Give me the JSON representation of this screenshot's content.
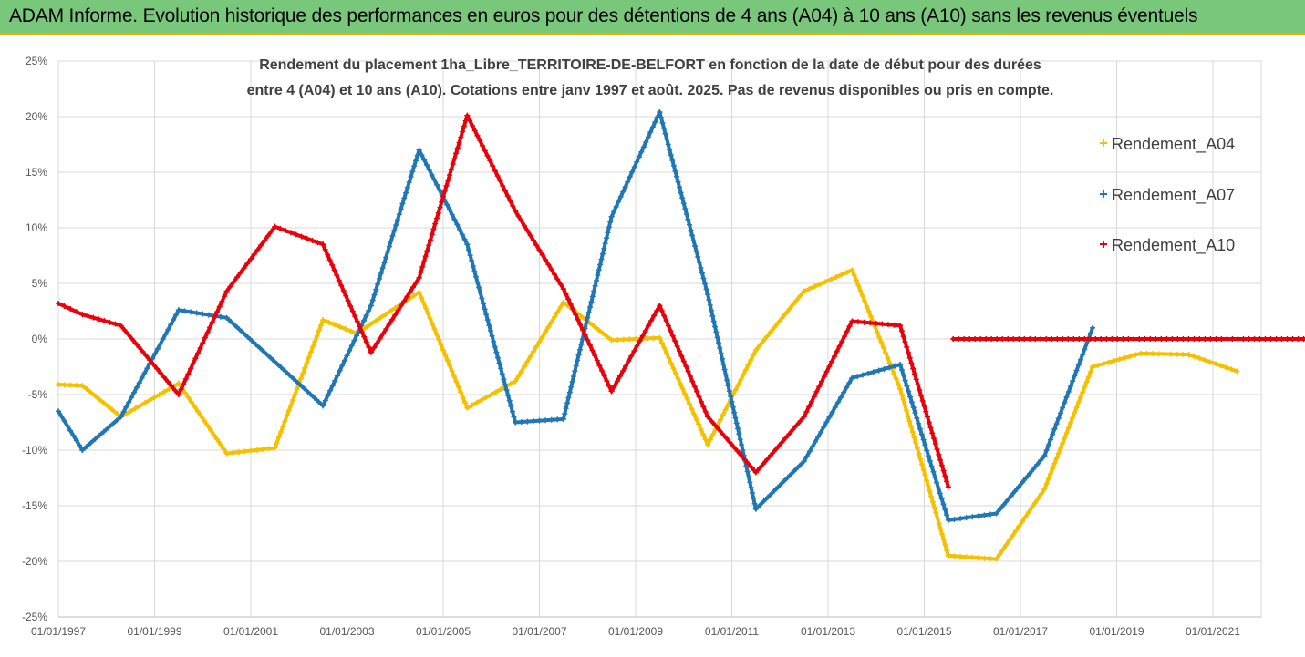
{
  "header": {
    "title": "ADAM Informe. Evolution historique des performances en euros pour des détentions de 4 ans (A04) à 10 ans (A10) sans les revenus éventuels"
  },
  "colors": {
    "banner": "#79c77a",
    "banner_border": "#e8b300",
    "A04": "#f5c000",
    "A07": "#1f77b4",
    "A10": "#e8000b",
    "grid": "#d9d9d9"
  },
  "chart_data": {
    "type": "line",
    "title_line1": "Rendement du placement 1ha_Libre_TERRITOIRE-DE-BELFORT en fonction de la date de début pour des durées",
    "title_line2": "entre 4 (A04) et 10 ans (A10). Cotations entre janv 1997 et août. 2025. Pas de revenus disponibles ou pris en compte.",
    "xlabel": "",
    "ylabel": "",
    "x_tick_labels": [
      "01/01/1997",
      "01/01/1999",
      "01/01/2001",
      "01/01/2003",
      "01/01/2005",
      "01/01/2007",
      "01/01/2009",
      "01/01/2011",
      "01/01/2013",
      "01/01/2015",
      "01/01/2017",
      "01/01/2019",
      "01/01/2021"
    ],
    "x_tick_years": [
      1997,
      1999,
      2001,
      2003,
      2005,
      2007,
      2009,
      2011,
      2013,
      2015,
      2017,
      2019,
      2021
    ],
    "xlim": [
      1997,
      2023
    ],
    "y_tick_labels": [
      "25%",
      "20%",
      "15%",
      "10%",
      "5%",
      "0%",
      "-5%",
      "-10%",
      "-15%",
      "-20%",
      "-25%"
    ],
    "y_tick_values": [
      25,
      20,
      15,
      10,
      5,
      0,
      -5,
      -10,
      -15,
      -20,
      -25
    ],
    "ylim": [
      -25,
      25
    ],
    "grid": true,
    "legend_position": "right",
    "series": [
      {
        "name": "Rendement_A04",
        "color": "#f5c000",
        "points": [
          [
            1997.0,
            -4.1
          ],
          [
            1997.5,
            -4.2
          ],
          [
            1998.3,
            -7.0
          ],
          [
            1999.5,
            -4.0
          ],
          [
            2000.5,
            -10.3
          ],
          [
            2001.5,
            -9.8
          ],
          [
            2002.5,
            1.7
          ],
          [
            2003.2,
            0.5
          ],
          [
            2004.5,
            4.2
          ],
          [
            2005.5,
            -6.2
          ],
          [
            2006.5,
            -3.8
          ],
          [
            2007.5,
            3.3
          ],
          [
            2008.5,
            -0.1
          ],
          [
            2009.5,
            0.1
          ],
          [
            2010.5,
            -9.5
          ],
          [
            2011.5,
            -1.0
          ],
          [
            2012.5,
            4.3
          ],
          [
            2013.5,
            6.2
          ],
          [
            2014.5,
            -4.5
          ],
          [
            2015.5,
            -19.5
          ],
          [
            2016.5,
            -19.8
          ],
          [
            2017.5,
            -13.5
          ],
          [
            2018.5,
            -2.5
          ],
          [
            2019.5,
            -1.3
          ],
          [
            2020.5,
            -1.4
          ],
          [
            2021.5,
            -2.9
          ]
        ]
      },
      {
        "name": "Rendement_A07",
        "color": "#1f77b4",
        "points": [
          [
            1997.0,
            -6.5
          ],
          [
            1997.5,
            -10.0
          ],
          [
            1998.3,
            -7.0
          ],
          [
            1999.5,
            2.6
          ],
          [
            2000.5,
            1.9
          ],
          [
            2002.5,
            -6.0
          ],
          [
            2003.5,
            3.0
          ],
          [
            2004.5,
            17.0
          ],
          [
            2005.5,
            8.5
          ],
          [
            2006.5,
            -7.5
          ],
          [
            2007.5,
            -7.2
          ],
          [
            2008.5,
            11.0
          ],
          [
            2009.5,
            20.4
          ],
          [
            2010.5,
            4.0
          ],
          [
            2011.5,
            -15.3
          ],
          [
            2012.5,
            -11.0
          ],
          [
            2013.5,
            -3.5
          ],
          [
            2014.5,
            -2.3
          ],
          [
            2015.5,
            -16.3
          ],
          [
            2016.5,
            -15.7
          ],
          [
            2017.5,
            -10.5
          ],
          [
            2018.5,
            1.0
          ]
        ]
      },
      {
        "name": "Rendement_A10",
        "color": "#e8000b",
        "points": [
          [
            1997.0,
            3.2
          ],
          [
            1997.5,
            2.2
          ],
          [
            1998.3,
            1.2
          ],
          [
            1999.5,
            -5.0
          ],
          [
            2000.5,
            4.3
          ],
          [
            2001.5,
            10.1
          ],
          [
            2002.5,
            8.5
          ],
          [
            2003.5,
            -1.2
          ],
          [
            2004.5,
            5.5
          ],
          [
            2005.5,
            20.1
          ],
          [
            2006.5,
            11.5
          ],
          [
            2007.5,
            4.5
          ],
          [
            2008.5,
            -4.7
          ],
          [
            2009.5,
            3.0
          ],
          [
            2010.5,
            -7.0
          ],
          [
            2011.5,
            -12.0
          ],
          [
            2012.5,
            -7.0
          ],
          [
            2013.5,
            1.6
          ],
          [
            2014.5,
            1.2
          ],
          [
            2015.5,
            -13.3
          ]
        ]
      },
      {
        "name": "",
        "color": "#e8000b",
        "points": [
          [
            2015.6,
            0.0
          ],
          [
            2023.0,
            0.0
          ]
        ]
      }
    ]
  }
}
